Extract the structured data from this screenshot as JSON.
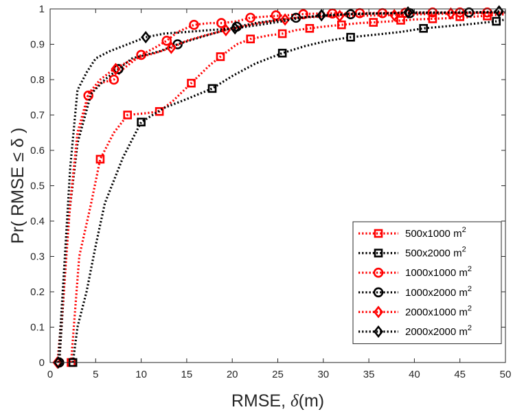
{
  "chart_data": {
    "type": "line",
    "title": "",
    "xlabel_prefix": "RMSE, ",
    "xlabel_symbol": "δ",
    "xlabel_suffix": "(m)",
    "ylabel": "Pr( RMSE ≤ δ )",
    "xlim": [
      0,
      50
    ],
    "ylim": [
      0,
      1
    ],
    "xticks": [
      0,
      5,
      10,
      15,
      20,
      25,
      30,
      35,
      40,
      45,
      50
    ],
    "yticks": [
      0,
      0.1,
      0.2,
      0.3,
      0.4,
      0.5,
      0.6,
      0.7,
      0.8,
      0.9,
      1
    ],
    "xtick_labels": [
      "0",
      "5",
      "10",
      "15",
      "20",
      "25",
      "30",
      "35",
      "40",
      "45",
      "50"
    ],
    "ytick_labels": [
      "0",
      "0.1",
      "0.2",
      "0.3",
      "0.4",
      "0.5",
      "0.6",
      "0.7",
      "0.8",
      "0.9",
      "1"
    ],
    "legend_position": "bottom-right",
    "unit_base": "m",
    "unit_exponent": "2",
    "series": [
      {
        "name": "500x1000",
        "color": "#ff0000",
        "marker": "square",
        "x": [
          2.3,
          2.6,
          3.2,
          4.5,
          5.5,
          7.0,
          8.5,
          10.5,
          12.0,
          13.5,
          15.5,
          17.5,
          18.7,
          20.5,
          22.0,
          24.0,
          25.5,
          27.0,
          28.5,
          30.0,
          32.0,
          34.0,
          35.5,
          37.5,
          40.0,
          42.0,
          45.0,
          47.5,
          50.0
        ],
        "y": [
          0.0,
          0.1,
          0.3,
          0.45,
          0.575,
          0.65,
          0.7,
          0.705,
          0.71,
          0.74,
          0.79,
          0.84,
          0.865,
          0.9,
          0.915,
          0.925,
          0.93,
          0.94,
          0.945,
          0.95,
          0.955,
          0.96,
          0.962,
          0.965,
          0.97,
          0.972,
          0.975,
          0.98,
          0.985
        ],
        "markers_x": [
          2.3,
          5.5,
          8.5,
          12.0,
          15.5,
          18.7,
          22.0,
          25.5,
          28.5,
          32.0,
          35.5,
          38.5,
          42.0,
          45.0,
          48.0
        ],
        "markers_y": [
          0.0,
          0.575,
          0.7,
          0.71,
          0.79,
          0.865,
          0.915,
          0.93,
          0.945,
          0.955,
          0.962,
          0.968,
          0.972,
          0.978,
          0.98
        ]
      },
      {
        "name": "500x2000",
        "color": "#000000",
        "marker": "square",
        "x": [
          2.5,
          3.0,
          4.0,
          5.0,
          6.0,
          8.0,
          10.0,
          12.5,
          15.0,
          17.8,
          20.0,
          22.5,
          25.5,
          28.0,
          30.5,
          33.0,
          36.0,
          38.5,
          41.0,
          44.0,
          46.5,
          49.0,
          50.0
        ],
        "y": [
          0.0,
          0.1,
          0.2,
          0.33,
          0.45,
          0.58,
          0.68,
          0.72,
          0.745,
          0.775,
          0.81,
          0.845,
          0.875,
          0.895,
          0.91,
          0.92,
          0.928,
          0.935,
          0.945,
          0.952,
          0.958,
          0.965,
          0.97
        ],
        "markers_x": [
          2.5,
          10.0,
          17.8,
          25.5,
          33.0,
          41.0,
          49.0
        ],
        "markers_y": [
          0.0,
          0.68,
          0.775,
          0.875,
          0.92,
          0.945,
          0.965
        ]
      },
      {
        "name": "1000x1000",
        "color": "#ff0000",
        "marker": "circle",
        "x": [
          1.0,
          1.5,
          2.0,
          3.0,
          4.2,
          5.5,
          7.0,
          8.0,
          10.0,
          11.5,
          12.8,
          14.0,
          15.8,
          17.5,
          19.0,
          20.5,
          22.0,
          24.5,
          26.0,
          27.5,
          29.5,
          32.0,
          34.0,
          36.5,
          40.0,
          45.0,
          48.0,
          50.0
        ],
        "y": [
          0.0,
          0.2,
          0.4,
          0.62,
          0.755,
          0.79,
          0.8,
          0.83,
          0.87,
          0.89,
          0.91,
          0.935,
          0.955,
          0.96,
          0.96,
          0.965,
          0.975,
          0.98,
          0.982,
          0.985,
          0.987,
          0.988,
          0.988,
          0.989,
          0.99,
          0.99,
          0.99,
          0.99
        ],
        "markers_x": [
          1.0,
          4.2,
          7.0,
          10.0,
          12.8,
          15.8,
          18.8,
          22.0,
          24.8,
          27.8,
          31.0,
          34.0,
          36.5,
          39.0,
          42.0,
          45.0,
          48.0
        ],
        "markers_y": [
          0.0,
          0.755,
          0.8,
          0.87,
          0.91,
          0.955,
          0.96,
          0.975,
          0.982,
          0.985,
          0.987,
          0.988,
          0.988,
          0.989,
          0.99,
          0.99,
          0.99
        ]
      },
      {
        "name": "1000x2000",
        "color": "#000000",
        "marker": "circle",
        "x": [
          1.0,
          1.5,
          2.0,
          3.0,
          4.5,
          6.0,
          7.5,
          9.0,
          10.5,
          12.0,
          14.0,
          16.5,
          18.5,
          20.5,
          23.0,
          25.5,
          27.0,
          30.0,
          33.0,
          36.0,
          39.5,
          43.0,
          46.0,
          49.0,
          50.0
        ],
        "y": [
          0.0,
          0.2,
          0.4,
          0.62,
          0.76,
          0.8,
          0.83,
          0.86,
          0.87,
          0.88,
          0.9,
          0.92,
          0.935,
          0.95,
          0.962,
          0.97,
          0.975,
          0.98,
          0.985,
          0.987,
          0.988,
          0.989,
          0.99,
          0.99,
          0.99
        ],
        "markers_x": [
          1.0,
          7.5,
          14.0,
          20.5,
          27.0,
          33.0,
          39.5,
          46.0
        ],
        "markers_y": [
          0.0,
          0.83,
          0.9,
          0.95,
          0.975,
          0.985,
          0.988,
          0.99
        ]
      },
      {
        "name": "2000x1000",
        "color": "#ff0000",
        "marker": "diamond",
        "x": [
          0.8,
          1.5,
          2.2,
          3.0,
          4.2,
          5.5,
          7.0,
          8.5,
          10.0,
          11.5,
          13.3,
          15.0,
          17.0,
          19.3,
          21.0,
          23.0,
          25.5,
          27.0,
          29.0,
          31.0,
          34.5,
          38.0,
          41.0,
          44.5,
          47.5,
          50.0
        ],
        "y": [
          0.0,
          0.2,
          0.45,
          0.65,
          0.76,
          0.8,
          0.83,
          0.85,
          0.865,
          0.875,
          0.89,
          0.91,
          0.925,
          0.94,
          0.95,
          0.96,
          0.97,
          0.975,
          0.977,
          0.98,
          0.981,
          0.983,
          0.985,
          0.987,
          0.988,
          0.99
        ],
        "markers_x": [
          0.8,
          7.2,
          13.3,
          19.3,
          25.8,
          31.8,
          37.8,
          44.0
        ],
        "markers_y": [
          0.0,
          0.83,
          0.89,
          0.94,
          0.97,
          0.98,
          0.982,
          0.987
        ]
      },
      {
        "name": "2000x2000",
        "color": "#000000",
        "marker": "diamond",
        "x": [
          0.9,
          1.5,
          2.2,
          3.0,
          4.0,
          5.0,
          6.5,
          8.0,
          10.5,
          12.5,
          15.0,
          17.5,
          20.3,
          23.0,
          25.5,
          27.5,
          29.8,
          32.5,
          35.0,
          37.5,
          39.3,
          42.0,
          45.0,
          47.5,
          49.3,
          50.0
        ],
        "y": [
          0.0,
          0.25,
          0.55,
          0.77,
          0.82,
          0.86,
          0.88,
          0.895,
          0.92,
          0.93,
          0.935,
          0.94,
          0.945,
          0.955,
          0.965,
          0.975,
          0.982,
          0.985,
          0.987,
          0.988,
          0.99,
          0.99,
          0.99,
          0.991,
          0.993,
          0.993
        ],
        "markers_x": [
          0.9,
          10.5,
          20.3,
          29.8,
          39.3,
          49.3
        ],
        "markers_y": [
          0.0,
          0.92,
          0.945,
          0.982,
          0.99,
          0.993
        ]
      }
    ]
  }
}
